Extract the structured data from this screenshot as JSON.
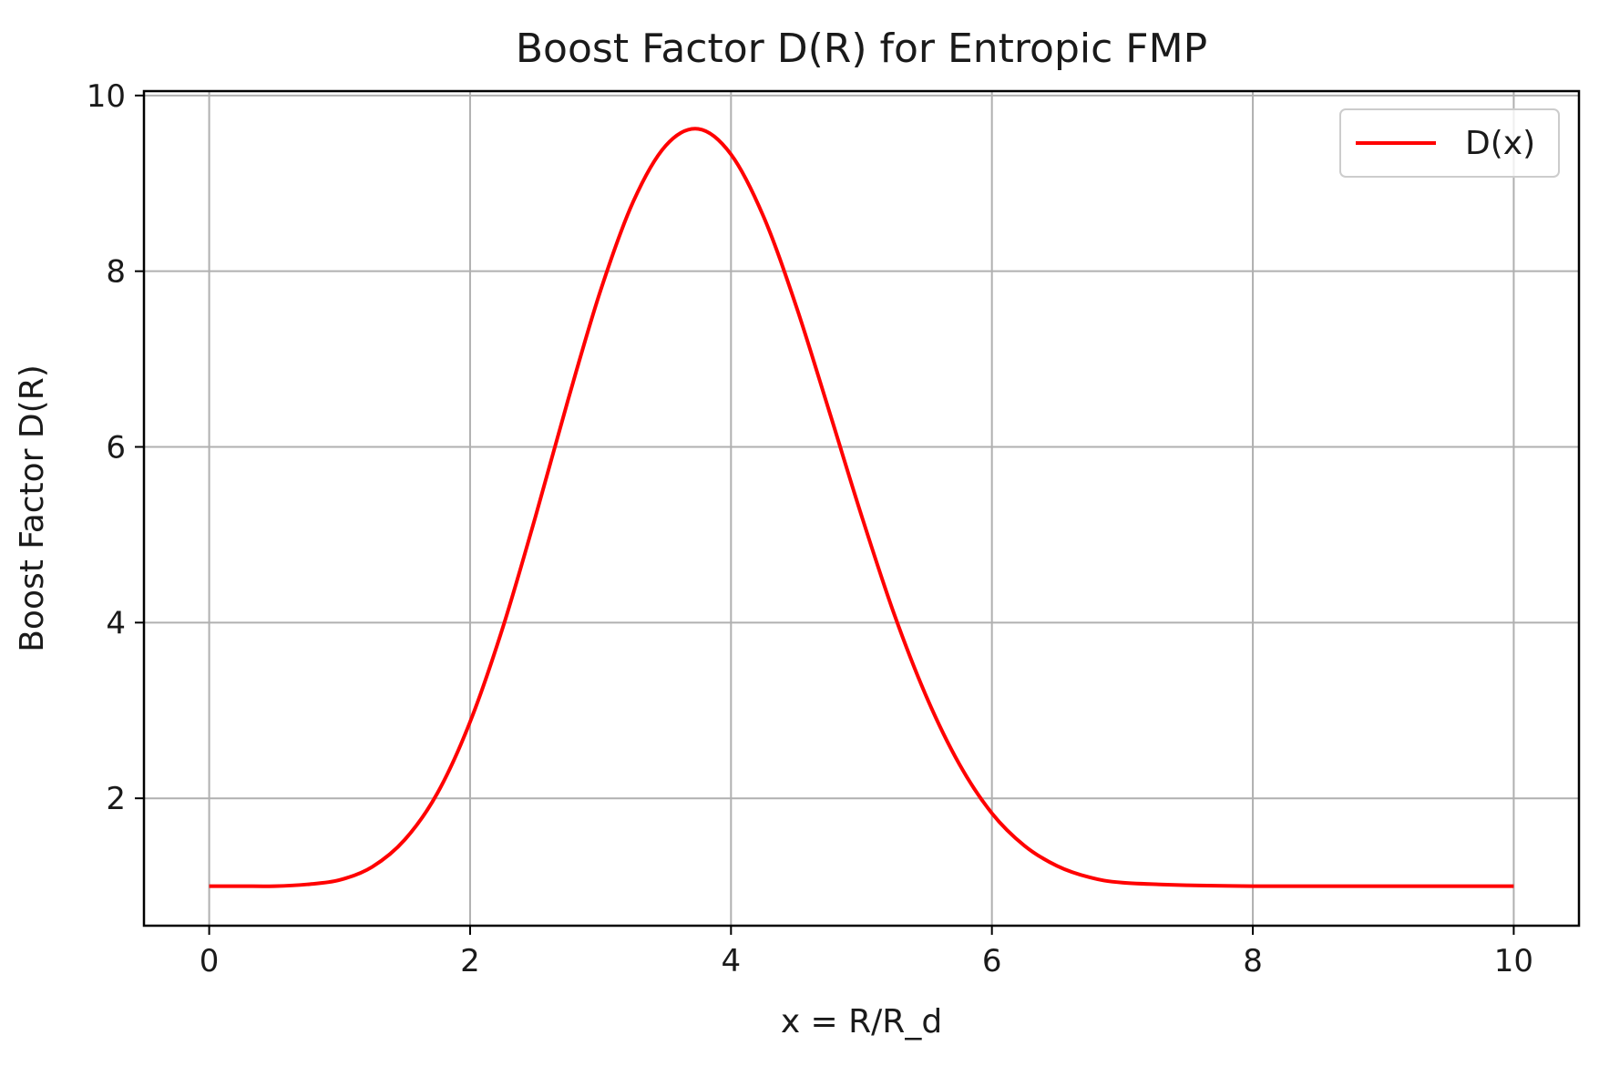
{
  "chart_data": {
    "type": "line",
    "title": "Boost Factor D(R) for Entropic FMP",
    "xlabel": "x = R/R_d",
    "ylabel": "Boost Factor D(R)",
    "xlim": [
      -0.5,
      10.5
    ],
    "ylim": [
      0.55,
      10.05
    ],
    "xticks": [
      0,
      2,
      4,
      6,
      8,
      10
    ],
    "yticks": [
      2,
      4,
      6,
      8,
      10
    ],
    "xtick_labels": [
      "0",
      "2",
      "4",
      "6",
      "8",
      "10"
    ],
    "ytick_labels": [
      "2",
      "4",
      "6",
      "8",
      "10"
    ],
    "grid": true,
    "legend_position": "top-right",
    "series": [
      {
        "name": "D(x)",
        "color": "#ff0000",
        "x": [
          0,
          0.25,
          0.5,
          0.75,
          1.0,
          1.25,
          1.5,
          1.75,
          2.0,
          2.25,
          2.5,
          2.75,
          3.0,
          3.25,
          3.5,
          3.75,
          4.0,
          4.25,
          4.5,
          4.75,
          5.0,
          5.25,
          5.5,
          5.75,
          6.0,
          6.25,
          6.5,
          6.75,
          7.0,
          7.5,
          8.0,
          8.5,
          9.0,
          9.5,
          10.0
        ],
        "y": [
          1.0,
          1.0,
          1.0,
          1.02,
          1.07,
          1.22,
          1.53,
          2.06,
          2.87,
          3.94,
          5.2,
          6.53,
          7.78,
          8.79,
          9.43,
          9.62,
          9.33,
          8.62,
          7.6,
          6.42,
          5.22,
          4.1,
          3.15,
          2.39,
          1.83,
          1.46,
          1.23,
          1.1,
          1.04,
          1.01,
          1.0,
          1.0,
          1.0,
          1.0,
          1.0
        ]
      }
    ]
  }
}
